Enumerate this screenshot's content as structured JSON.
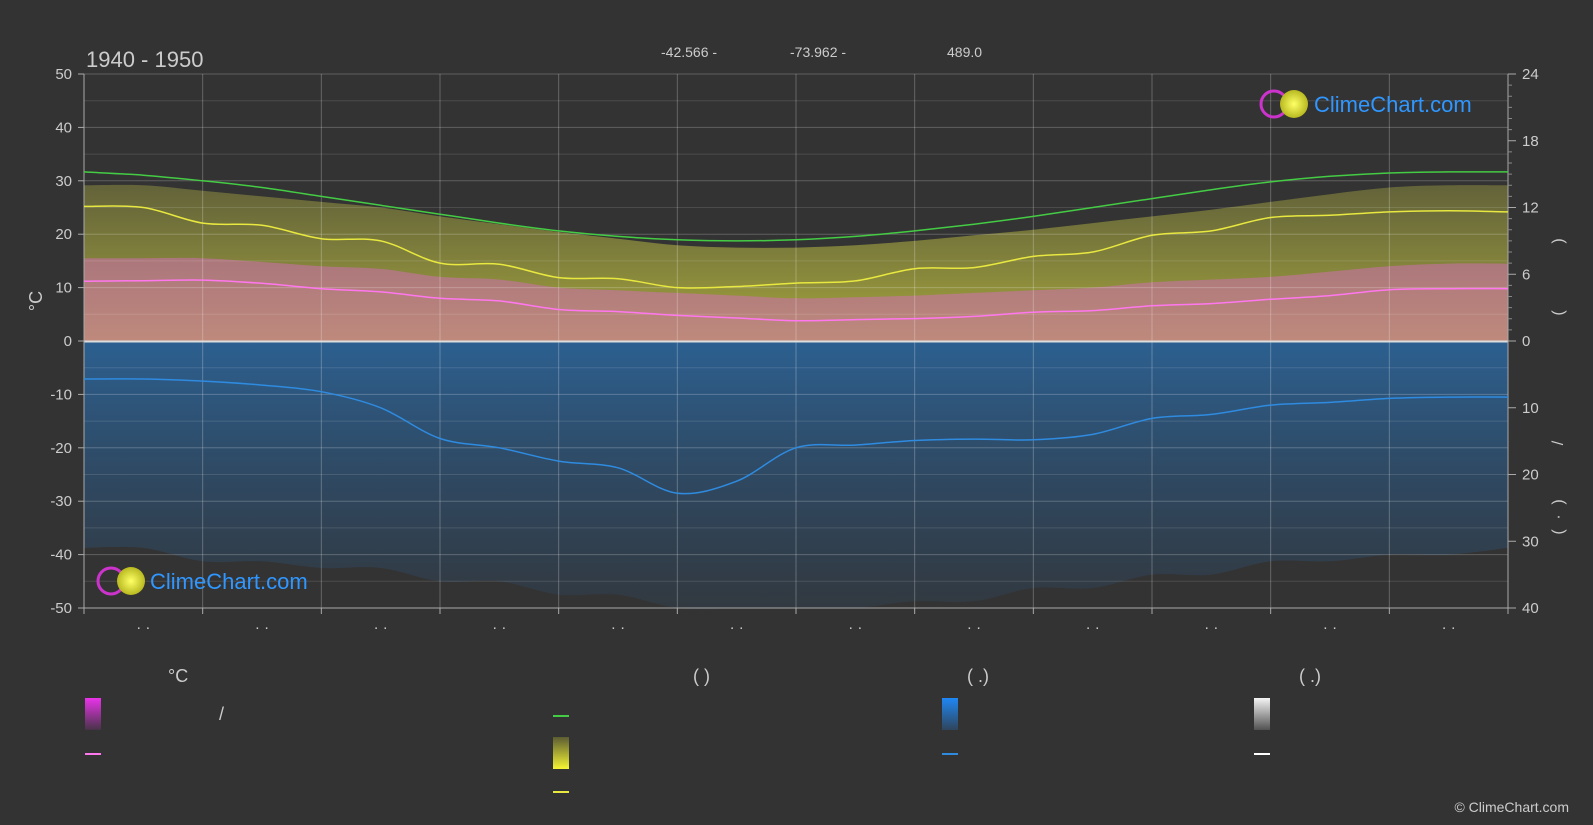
{
  "chart_data": {
    "type": "line",
    "title": "1940 - 1950",
    "header_values": [
      "-42.566 -",
      "-73.962 -",
      "489.0"
    ],
    "y_left": {
      "label": "°C",
      "ylim": [
        -50,
        50
      ],
      "ticks": [
        50,
        40,
        30,
        20,
        10,
        0,
        -10,
        -20,
        -30,
        -40,
        -50
      ]
    },
    "y_right_top": {
      "ylim": [
        0,
        24
      ],
      "ticks": [
        24,
        18,
        12,
        6,
        0
      ],
      "label_glyphs": [
        "(",
        ")"
      ]
    },
    "y_right_bottom": {
      "ylim": [
        0,
        40
      ],
      "ticks": [
        10,
        20,
        30,
        40
      ],
      "label_glyphs": [
        "/",
        "(",
        "·",
        ")"
      ]
    },
    "x_tick_labels": [
      "· ·",
      "· ·",
      "· ·",
      "· ·",
      "· ·",
      "· ·",
      "· ·",
      "· ·",
      "· ·",
      "· ·",
      "· ·",
      "· ·"
    ],
    "x": [
      0,
      0.5,
      1,
      1.5,
      2,
      2.5,
      3,
      3.5,
      4,
      4.5,
      5,
      5.5,
      6,
      6.5,
      7,
      7.5,
      8,
      8.5,
      9,
      9.5,
      10,
      10.5,
      11,
      11.5,
      12
    ],
    "series": [
      {
        "key": "daylight",
        "unit": "h",
        "axis": "right_top",
        "color": "#44cc44",
        "values": [
          15.2,
          14.9,
          14.4,
          13.8,
          13.0,
          12.2,
          11.4,
          10.6,
          9.9,
          9.4,
          9.1,
          9.0,
          9.1,
          9.4,
          9.9,
          10.5,
          11.2,
          12.0,
          12.8,
          13.6,
          14.3,
          14.8,
          15.1,
          15.2,
          15.2
        ]
      },
      {
        "key": "sunshine",
        "unit": "h",
        "axis": "right_top",
        "color": "#e8e840",
        "values": [
          12.1,
          12.0,
          10.6,
          10.4,
          9.2,
          9.0,
          7.0,
          6.9,
          5.7,
          5.6,
          4.8,
          4.9,
          5.2,
          5.4,
          6.5,
          6.6,
          7.6,
          8.0,
          9.5,
          9.9,
          11.1,
          11.3,
          11.6,
          11.7,
          11.6
        ]
      },
      {
        "key": "mean_temp",
        "unit": "°C",
        "axis": "left",
        "color": "#ff77ee",
        "values": [
          11.2,
          11.3,
          11.4,
          10.8,
          9.8,
          9.2,
          8.0,
          7.5,
          5.9,
          5.5,
          4.8,
          4.3,
          3.8,
          4.0,
          4.2,
          4.6,
          5.4,
          5.7,
          6.6,
          7.0,
          7.8,
          8.5,
          9.6,
          9.8,
          9.8
        ]
      },
      {
        "key": "precipitation",
        "unit": "mm",
        "axis": "right_bottom",
        "color": "#2f8be0",
        "values": [
          5.7,
          5.7,
          6.0,
          6.6,
          7.6,
          10.0,
          14.6,
          16.0,
          18.0,
          19.0,
          22.8,
          21.0,
          16.0,
          15.6,
          14.9,
          14.7,
          14.8,
          14.0,
          11.6,
          11.0,
          9.6,
          9.2,
          8.6,
          8.4,
          8.4
        ]
      }
    ],
    "bands": {
      "sunshine_band_top_h": [
        14.0,
        14.0,
        13.5,
        13.0,
        12.5,
        12.0,
        11.2,
        10.5,
        9.8,
        9.2,
        8.6,
        8.4,
        8.4,
        8.6,
        9.0,
        9.5,
        10.0,
        10.6,
        11.2,
        11.8,
        12.5,
        13.2,
        13.8,
        14.0,
        14.0
      ],
      "temp_band_top_c": [
        15.5,
        15.5,
        15.5,
        14.8,
        14.0,
        13.5,
        12.0,
        11.5,
        10.0,
        9.5,
        9.0,
        8.5,
        8.0,
        8.2,
        8.5,
        9.0,
        9.5,
        10.0,
        11.0,
        11.5,
        12.0,
        13.0,
        14.0,
        14.5,
        14.5
      ],
      "precip_band_bottom_mm": [
        31.0,
        31.0,
        33.0,
        33.0,
        34.0,
        34.0,
        36.0,
        36.0,
        38.0,
        38.0,
        40.0,
        40.0,
        40.0,
        40.0,
        39.0,
        39.0,
        37.0,
        37.0,
        35.0,
        35.0,
        33.0,
        33.0,
        32.0,
        32.0,
        31.0
      ]
    },
    "grid": true,
    "legend_position": "bottom"
  },
  "legend": {
    "col1_header": "°C",
    "col1_row1_text": "/",
    "col2_header": "(          )",
    "col3_header": "(   .)",
    "col4_header": "(   .)"
  },
  "watermark": {
    "text": "ClimeChart.com"
  },
  "copyright": "© ClimeChart.com"
}
